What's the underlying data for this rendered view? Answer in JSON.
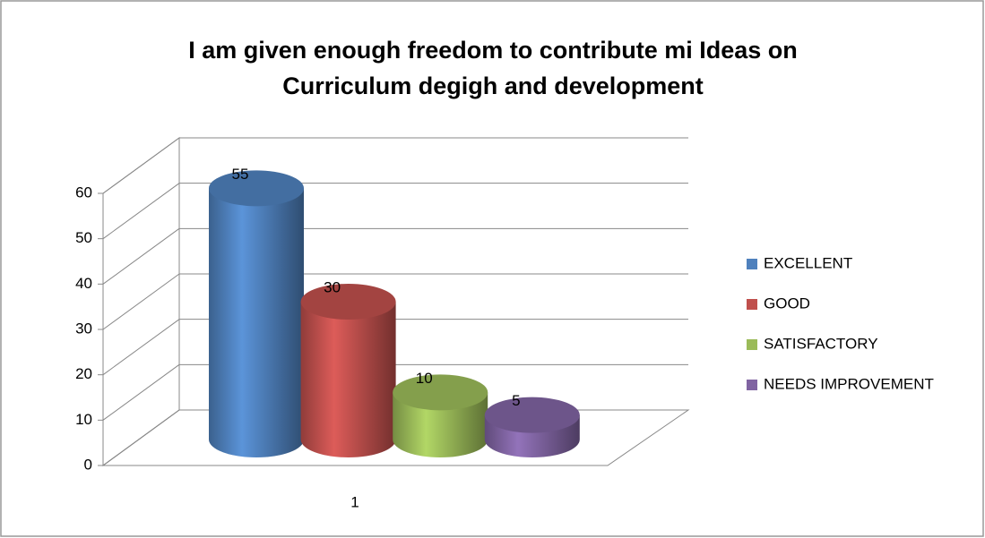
{
  "chart_data": {
    "type": "bar3d",
    "title": [
      "I am given enough freedom to contribute mi Ideas on",
      "Curriculum degigh and development"
    ],
    "categories": [
      "1"
    ],
    "series": [
      {
        "name": "EXCELLENT",
        "color": "#4f81bd",
        "values": [
          55
        ]
      },
      {
        "name": "GOOD",
        "color": "#c0504d",
        "values": [
          30
        ]
      },
      {
        "name": "SATISFACTORY",
        "color": "#9bbb59",
        "values": [
          10
        ]
      },
      {
        "name": "NEEDS IMPROVEMENT",
        "color": "#8064a2",
        "values": [
          5
        ]
      }
    ],
    "ylim": [
      0,
      60
    ],
    "yticks": [
      0,
      10,
      20,
      30,
      40,
      50,
      60
    ],
    "grid": true,
    "legend": "right"
  }
}
